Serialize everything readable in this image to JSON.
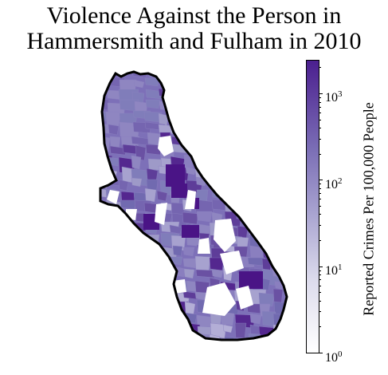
{
  "title": {
    "line1": "Violence Against the Person in",
    "line2": "Hammersmith and Fulham in 2010"
  },
  "colorbar": {
    "label": "Reported Crimes Per 100,000 People",
    "scale": "log",
    "range": [
      1,
      2000
    ],
    "ticks": [
      {
        "base": "10",
        "exp": "0",
        "value": 1
      },
      {
        "base": "10",
        "exp": "1",
        "value": 10
      },
      {
        "base": "10",
        "exp": "2",
        "value": 100
      },
      {
        "base": "10",
        "exp": "3",
        "value": 1000
      }
    ],
    "colormap": "Purples",
    "low_color": "#ffffff",
    "high_color": "#3f007d"
  },
  "map": {
    "region": "Hammersmith and Fulham",
    "outline_color": "#000000",
    "no_data_color": "#ffffff"
  }
}
